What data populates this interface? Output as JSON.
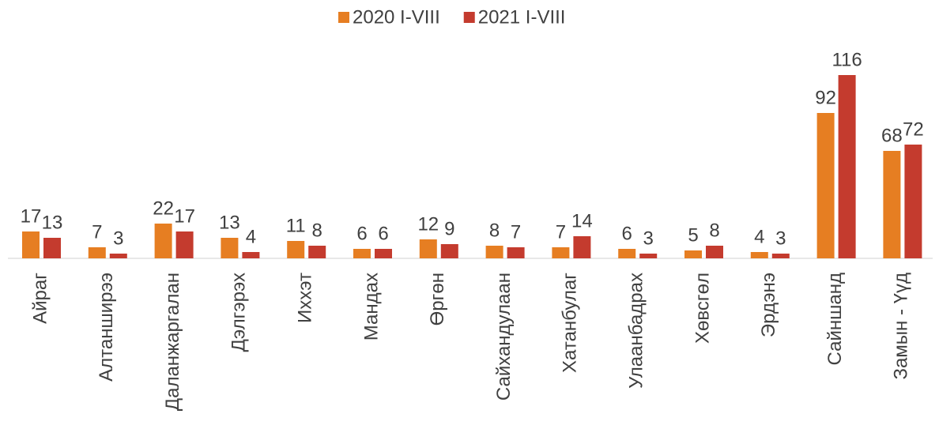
{
  "chart_data": {
    "type": "bar",
    "categories": [
      "Айраг",
      "Алтанширээ",
      "Даланжаргалан",
      "Дэлгэрэх",
      "Иххэт",
      "Мандах",
      "Өргөн",
      "Сайхандулаан",
      "Хатанбулаг",
      "Улаанбадрах",
      "Хөвсгөл",
      "Эрдэнэ",
      "Сайншанд",
      "Замын - Үүд"
    ],
    "series": [
      {
        "name": "2020 I-VIII",
        "color": "#e67e22",
        "values": [
          17,
          7,
          22,
          13,
          11,
          6,
          12,
          8,
          7,
          6,
          5,
          4,
          92,
          68
        ]
      },
      {
        "name": "2021 I-VIII",
        "color": "#c43b2e",
        "values": [
          13,
          3,
          17,
          4,
          8,
          6,
          9,
          7,
          14,
          3,
          8,
          3,
          116,
          72
        ]
      }
    ],
    "legend": "top"
  }
}
